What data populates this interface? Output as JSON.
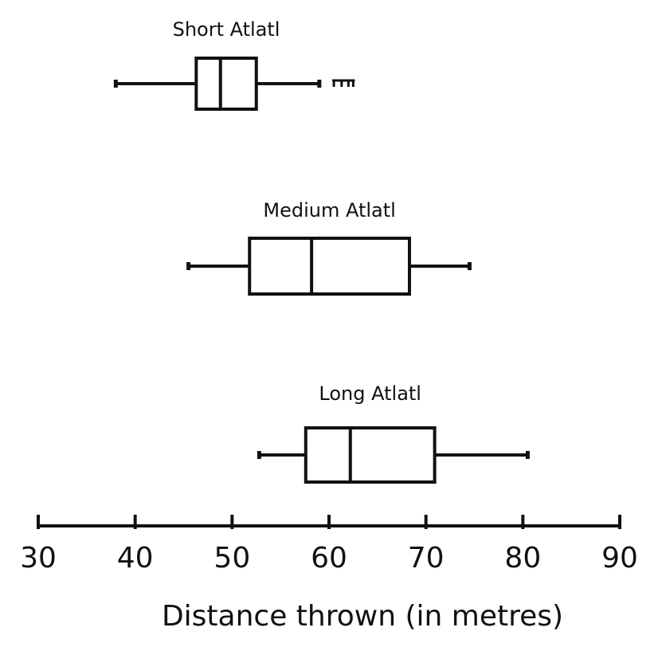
{
  "chart_data": {
    "type": "boxplot",
    "orientation": "horizontal",
    "title": "",
    "xlabel": "Distance thrown (in metres)",
    "ylabel": "",
    "xlim": [
      30,
      90
    ],
    "xticks": [
      30,
      40,
      50,
      60,
      70,
      80,
      90
    ],
    "tick_labels": [
      "30",
      "40",
      "50",
      "60",
      "70",
      "80",
      "90"
    ],
    "grid": false,
    "series": [
      {
        "name": "Short Atlatl",
        "min": 38,
        "q1": 46.3,
        "median": 48.8,
        "q3": 52.5,
        "max": 59,
        "outliers": [
          60.5,
          61.3,
          62,
          62.5
        ]
      },
      {
        "name": "Medium Atlatl",
        "min": 45.5,
        "q1": 51.8,
        "median": 58.2,
        "q3": 68.3,
        "max": 74.5,
        "outliers": []
      },
      {
        "name": "Long Atlatl",
        "min": 52.8,
        "q1": 57.6,
        "median": 62.2,
        "q3": 70.9,
        "max": 80.5,
        "outliers": []
      }
    ]
  }
}
